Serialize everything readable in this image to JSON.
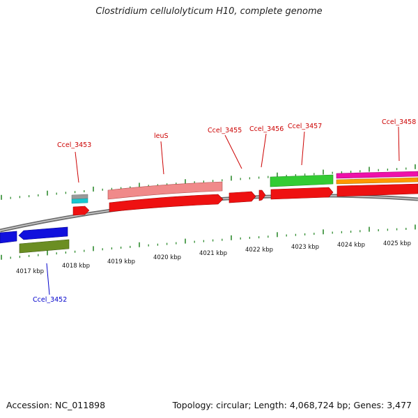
{
  "title": "Clostridium cellulolyticum H10, complete genome",
  "footer": {
    "accession": "Accession: NC_011898",
    "summary": "Topology: circular; Length: 4,068,724 bp; Genes: 3,477"
  },
  "scale_labels": [
    "4017 kbp",
    "4018 kbp",
    "4019 kbp",
    "4020 kbp",
    "4021 kbp",
    "4022 kbp",
    "4023 kbp",
    "4024 kbp",
    "4025 kbp"
  ],
  "gene_labels_forward": [
    "Ccel_3453",
    "leuS",
    "Ccel_3455",
    "Ccel_3456",
    "Ccel_3457",
    "Ccel_3458"
  ],
  "gene_labels_reverse": [
    "Ccel_3452"
  ],
  "colors": {
    "backbone": "#8a8a8a",
    "tick": "#2e8b2e",
    "forward_label": "#cc0000",
    "reverse_label": "#0000cc",
    "cds": "#ee1111",
    "trna_pink": "#f08a8a",
    "green_feature": "#33cc33",
    "blue_feature": "#1111dd",
    "olive_feature": "#6b8e23",
    "magenta_feature": "#ee11aa",
    "orange_feature": "#ff9900",
    "gray_feature": "#999999",
    "cyan_feature": "#11cccc"
  }
}
